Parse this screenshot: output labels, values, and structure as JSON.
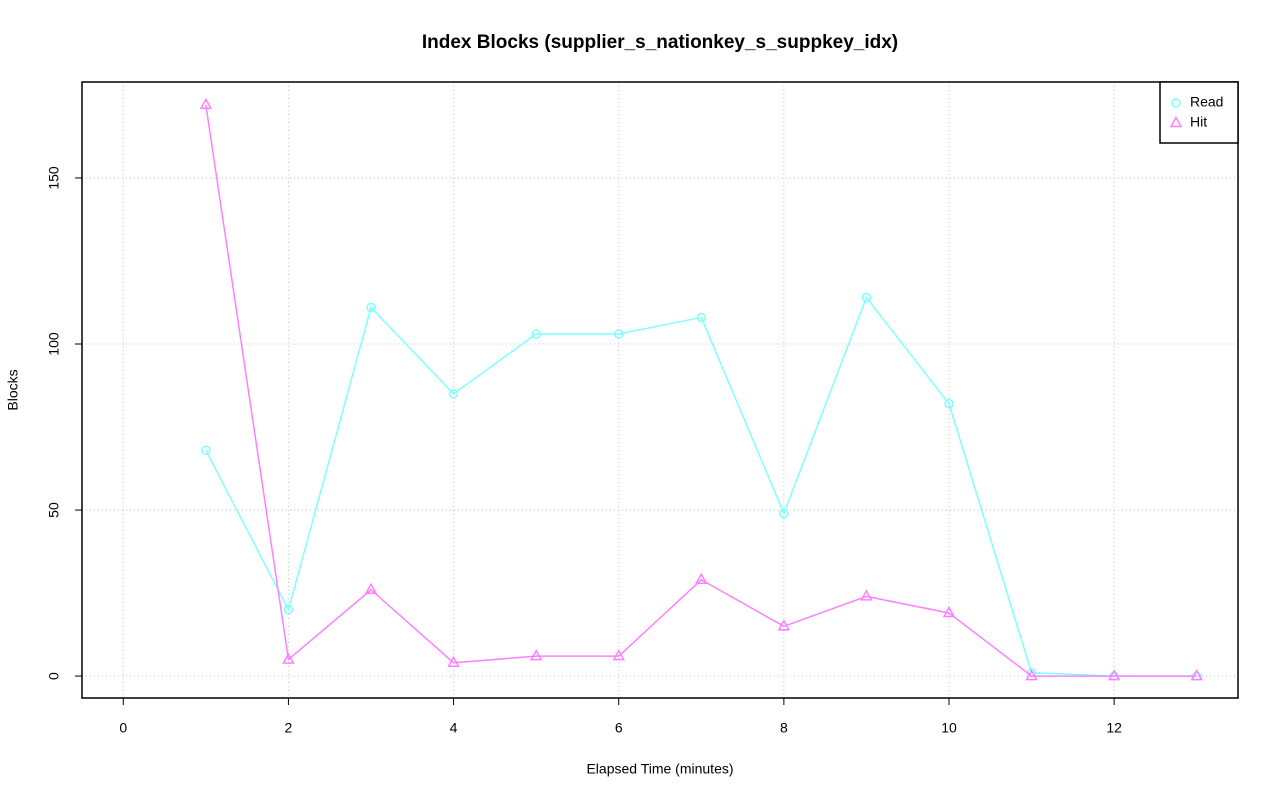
{
  "chart_data": {
    "type": "line",
    "title": "Index Blocks (supplier_s_nationkey_s_suppkey_idx)",
    "x_label": "Elapsed Time (minutes)",
    "y_label": "Blocks",
    "x": [
      1,
      2,
      3,
      4,
      5,
      6,
      7,
      8,
      9,
      10,
      11,
      12,
      13
    ],
    "series": [
      {
        "name": "Read",
        "color": "#7fffff",
        "marker": "circle",
        "values": [
          68,
          20,
          111,
          85,
          103,
          103,
          108,
          49,
          114,
          82,
          1,
          0,
          0
        ]
      },
      {
        "name": "Hit",
        "color": "#ff80ff",
        "marker": "triangle",
        "values": [
          172,
          5,
          26,
          4,
          6,
          6,
          29,
          15,
          24,
          19,
          0,
          0,
          0
        ]
      }
    ],
    "xlim": [
      -0.5,
      13.5
    ],
    "xticks": [
      0,
      2,
      4,
      6,
      8,
      10,
      12
    ],
    "ylim": [
      -6.6,
      178.9
    ],
    "yticks": [
      0,
      50,
      100,
      150
    ],
    "grid": true,
    "legend": "top-right"
  }
}
